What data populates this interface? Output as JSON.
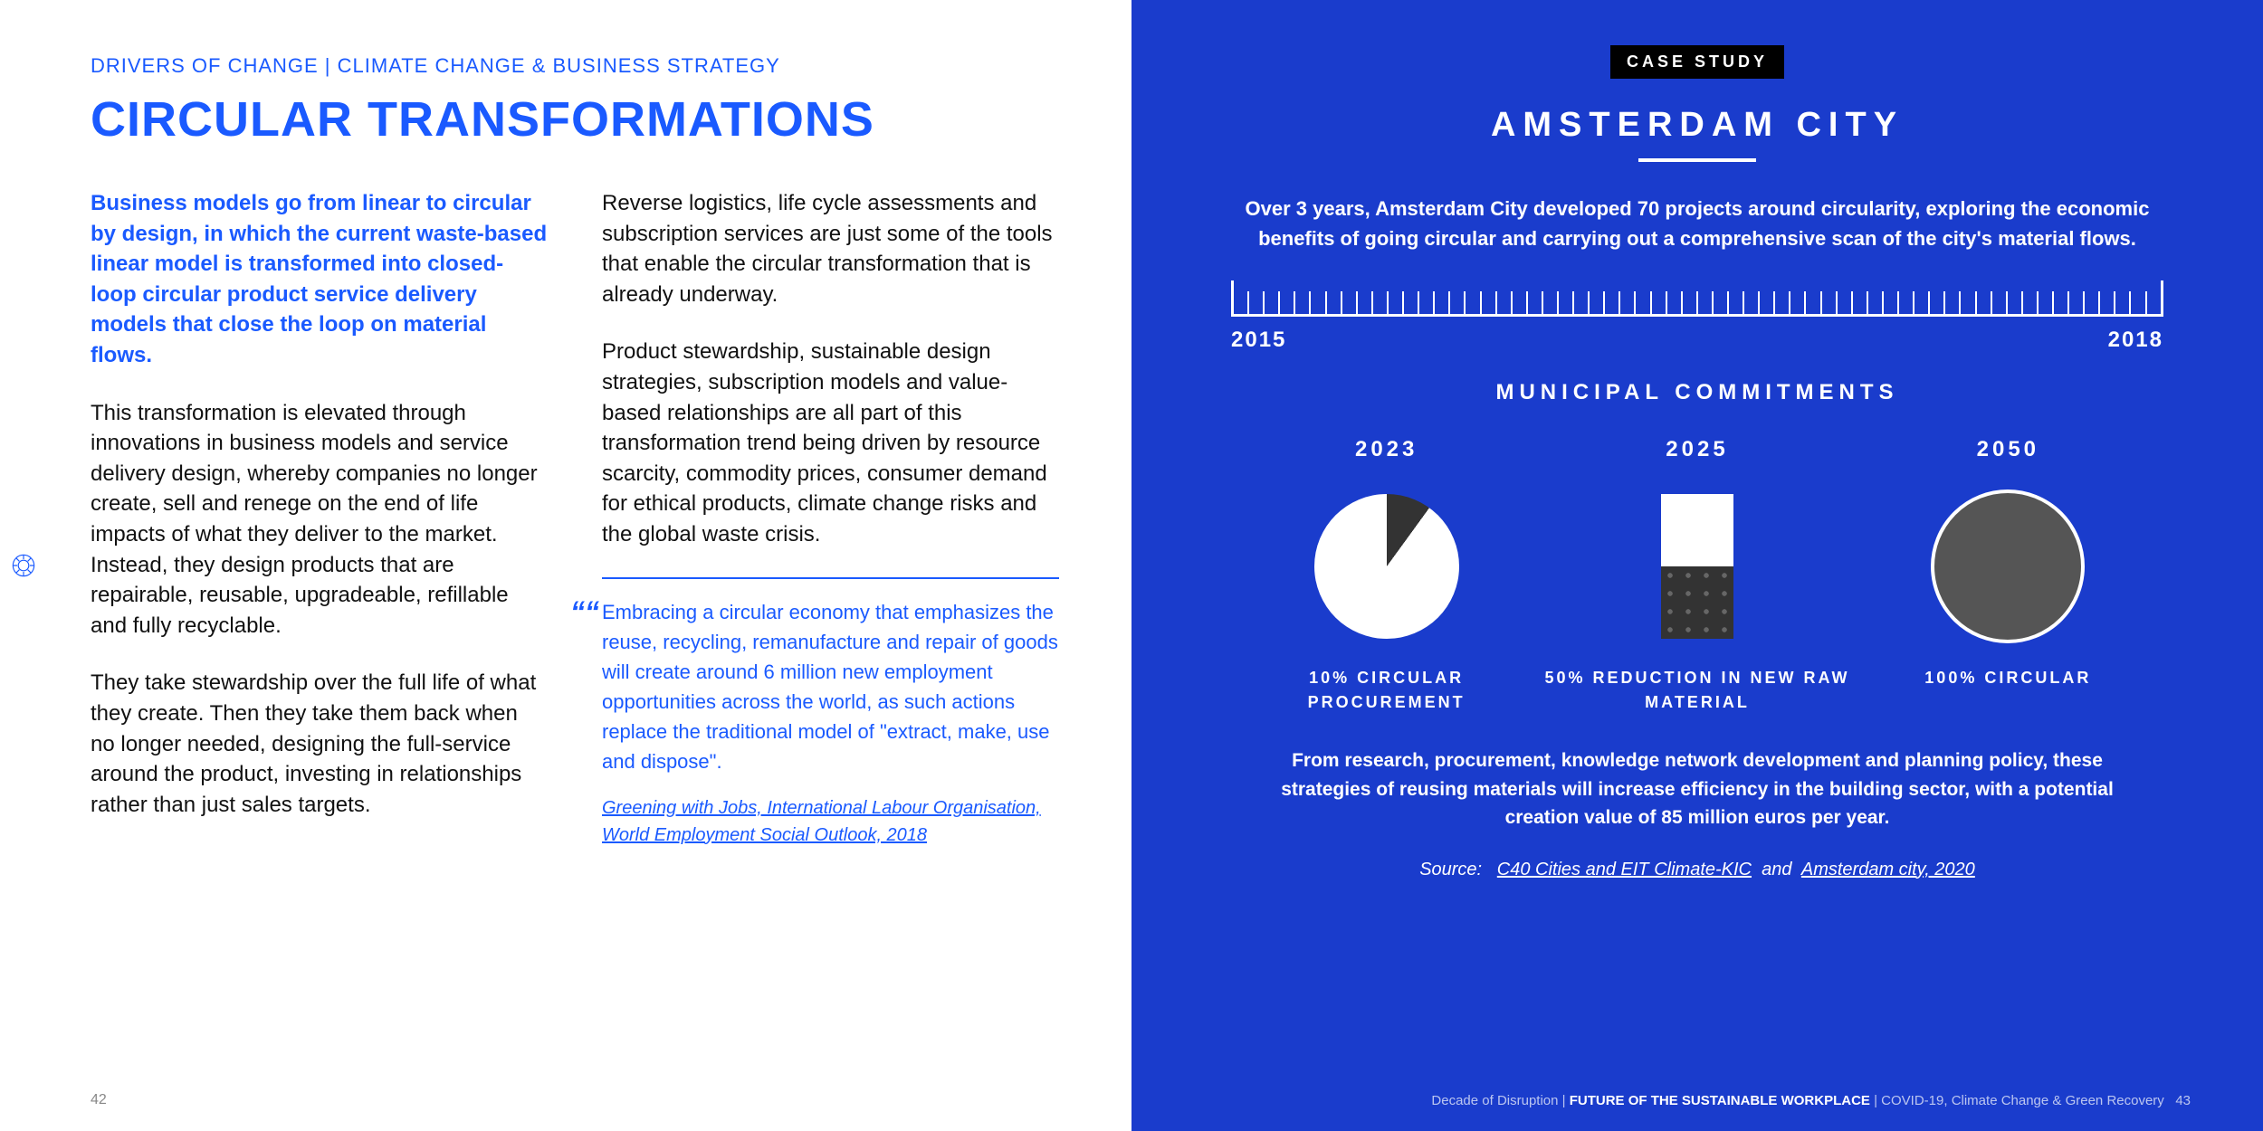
{
  "left": {
    "breadcrumb": "DRIVERS OF CHANGE  |  CLIMATE CHANGE & BUSINESS STRATEGY",
    "title": "CIRCULAR TRANSFORMATIONS",
    "intro": "Business models go from linear to circular by design, in which the current waste-based linear model is transformed into closed-loop circular product service delivery models that close the loop on material flows.",
    "p1": "This transformation is elevated through innovations in business models and service delivery design, whereby companies no longer create, sell and renege on the end of life impacts of what they deliver to the market. Instead, they design products that are repairable, reusable, upgradeable, refillable and fully recyclable.",
    "p2": "They take stewardship over the full life of what they create. Then they take them back when no longer needed, designing the full-service around the product, investing in relationships rather than just sales targets.",
    "p3": "Reverse logistics, life cycle assessments and subscription services are just some of the tools that enable the circular transformation that is already underway.",
    "p4": "Product stewardship, sustainable design strategies, subscription models and value-based relationships are all part of this transformation trend being driven by resource scarcity, commodity prices, consumer demand for ethical products, climate change risks and the global waste crisis.",
    "quote": "Embracing a circular economy that emphasizes the reuse, recycling, remanufacture and repair of goods will create around 6 million new employment opportunities across the world, as such actions replace the traditional model of \"extract, make, use and dispose\".",
    "quote_source": "Greening with Jobs, International Labour Organisation, World Employment Social Outlook, 2018",
    "page_num": "42"
  },
  "right": {
    "badge": "CASE STUDY",
    "title": "AMSTERDAM CITY",
    "intro": "Over 3 years, Amsterdam City developed 70 projects around circularity, exploring the economic benefits of going circular and carrying out a comprehensive scan of the city's material flows.",
    "timeline": {
      "start": "2015",
      "end": "2018",
      "ticks": 60
    },
    "section_header": "MUNICIPAL COMMITMENTS",
    "commitments": [
      {
        "year": "2023",
        "label": "10% CIRCULAR PROCUREMENT",
        "type": "pie",
        "percent": 10
      },
      {
        "year": "2025",
        "label": "50% REDUCTION IN NEW RAW MATERIAL",
        "type": "bar",
        "percent": 50
      },
      {
        "year": "2050",
        "label": "100% CIRCULAR",
        "type": "circle",
        "percent": 100
      }
    ],
    "outro": "From research, procurement, knowledge network development and planning policy, these strategies of reusing materials will increase efficiency in the building sector, with a potential creation value of 85 million euros per year.",
    "source_prefix": "Source:",
    "source_link1": "C40 Cities and EIT Climate-KIC",
    "source_and": "and",
    "source_link2": "Amsterdam city, 2020",
    "footer_pre": "Decade of Disruption  |  ",
    "footer_strong": "FUTURE OF THE SUSTAINABLE WORKPLACE",
    "footer_post": "  |  COVID-19, Climate Change & Green Recovery",
    "page_num": "43"
  },
  "colors": {
    "brand_blue": "#1a5aff",
    "panel_blue": "#1a3ccc",
    "white": "#ffffff",
    "black": "#000000"
  }
}
